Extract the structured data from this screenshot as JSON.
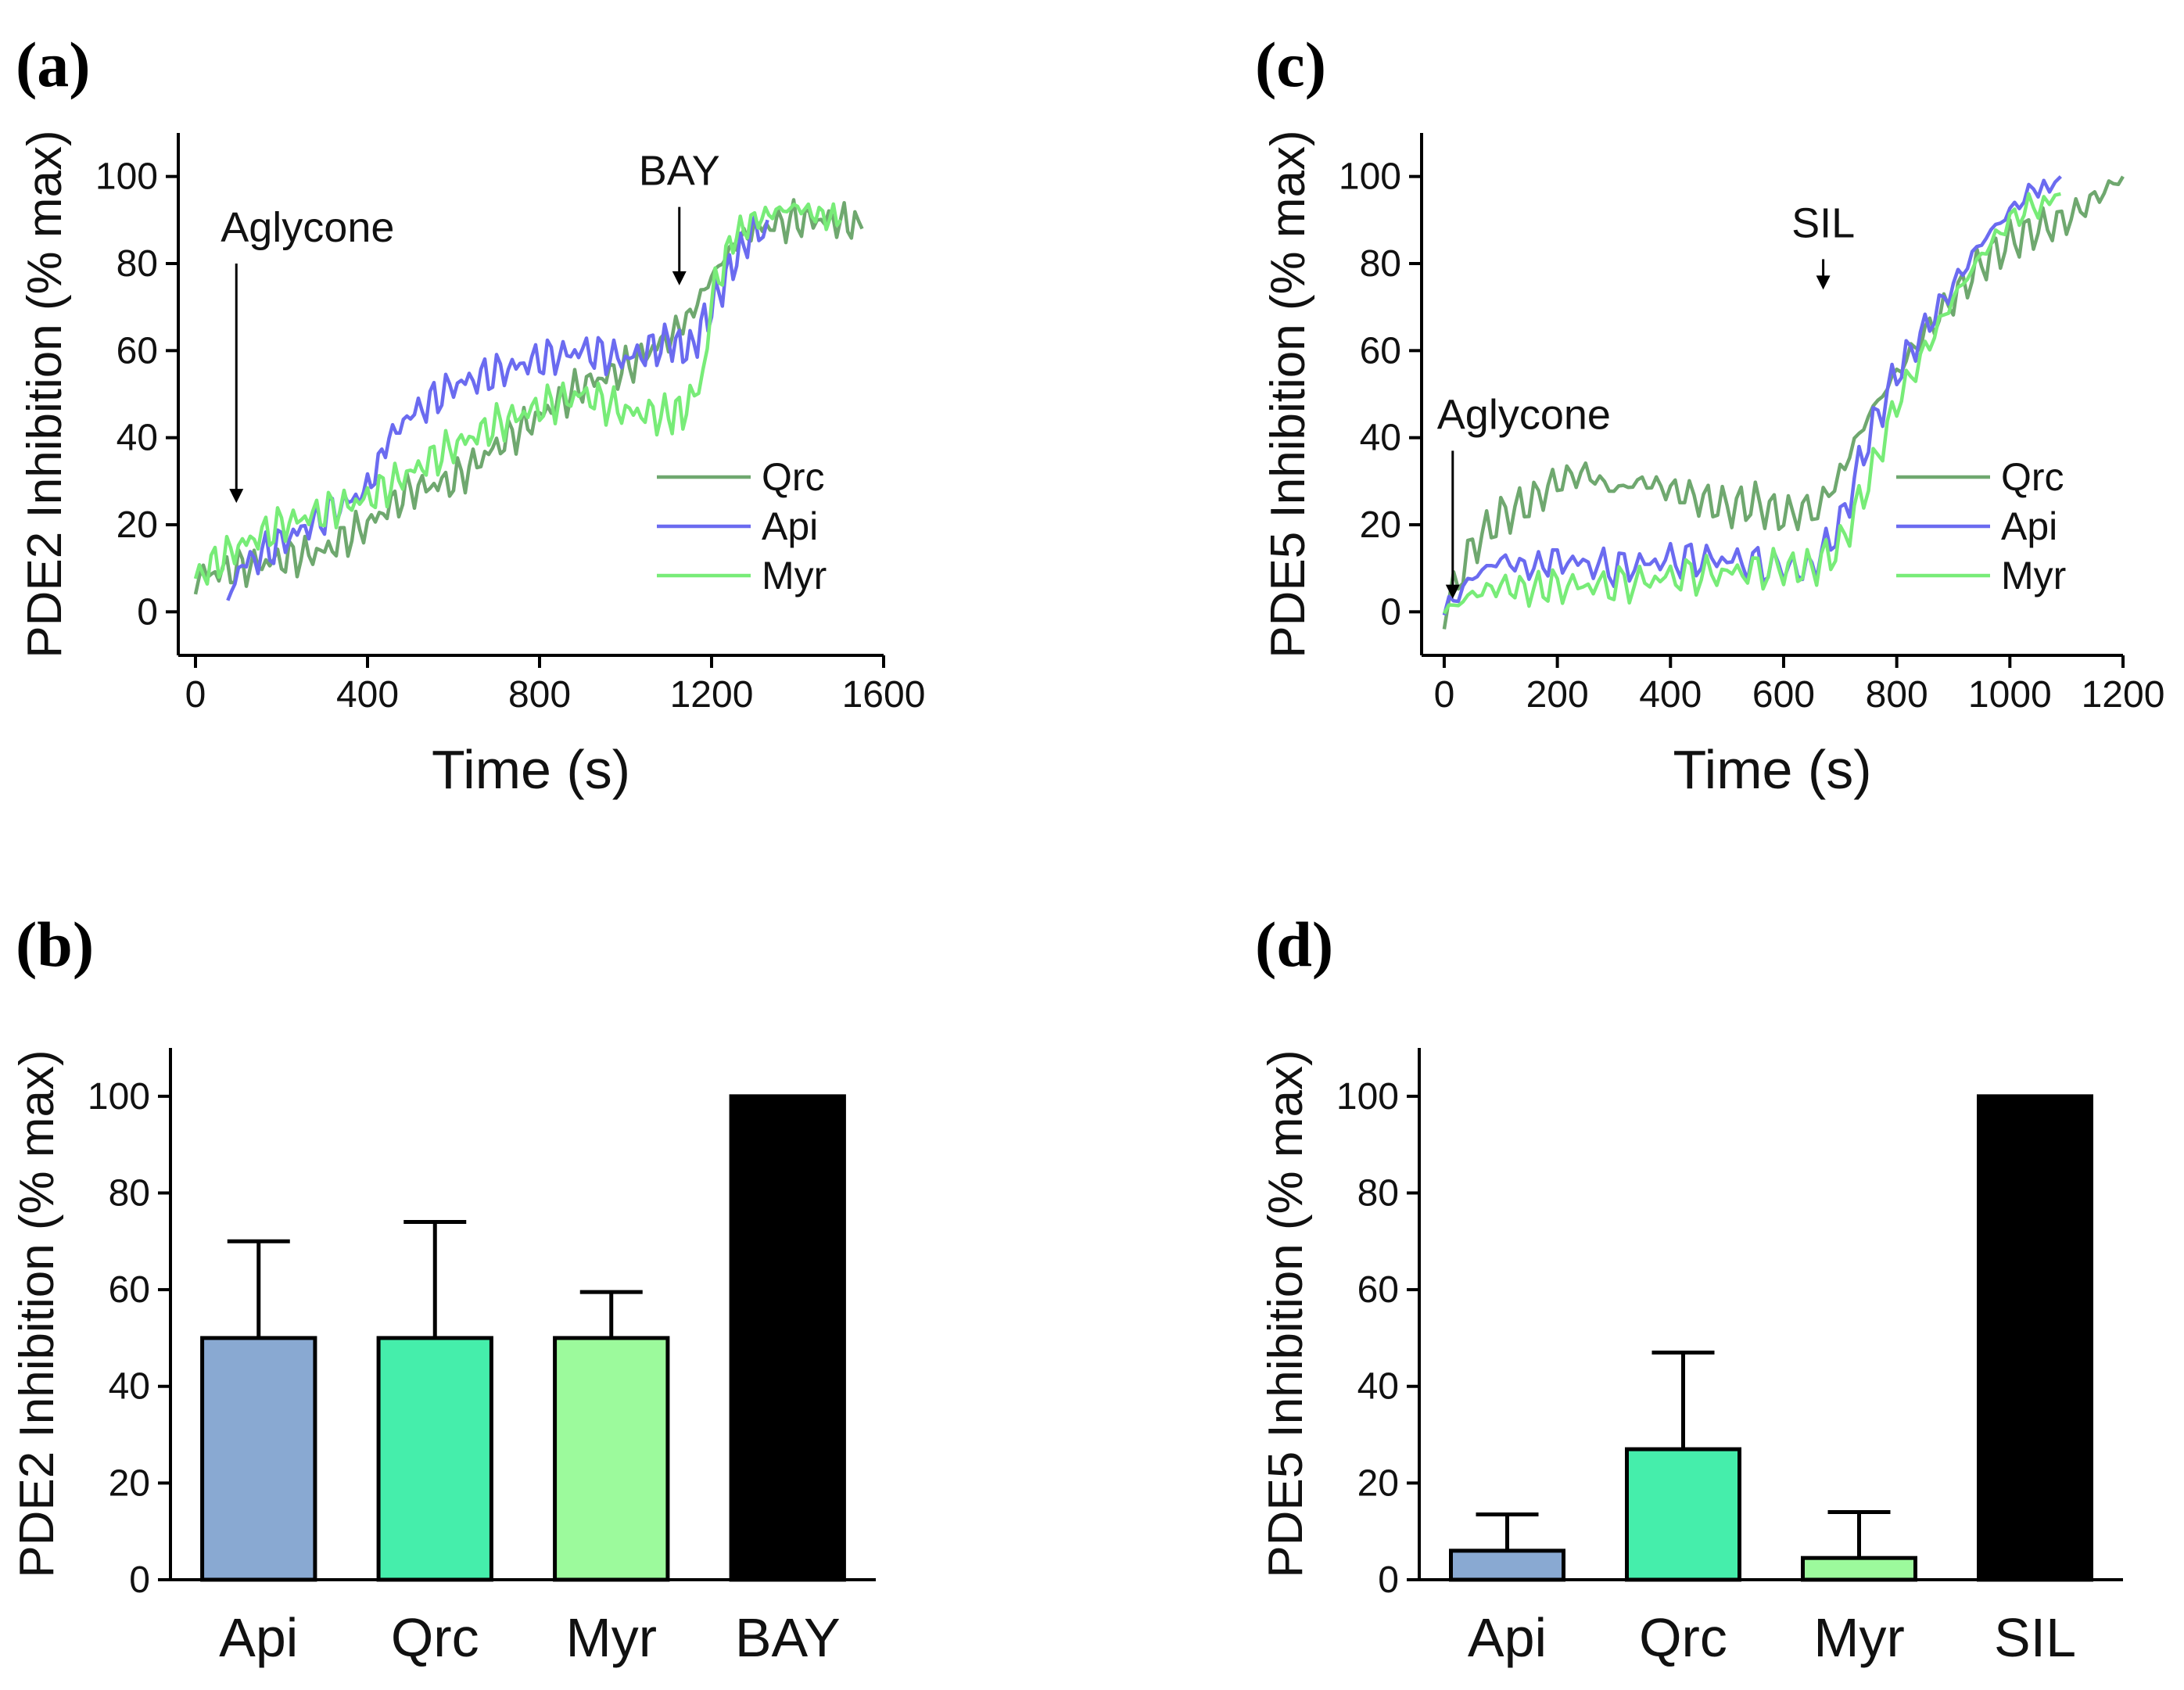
{
  "figure": {
    "panels": [
      {
        "id": "a",
        "label": "(a)"
      },
      {
        "id": "b",
        "label": "(b)"
      },
      {
        "id": "c",
        "label": "(c)"
      },
      {
        "id": "d",
        "label": "(d)"
      }
    ]
  },
  "chart_data": [
    {
      "id": "a",
      "type": "line",
      "xlabel": "Time (s)",
      "ylabel": "PDE2 Inhibition (% max)",
      "xlim": [
        -40,
        1600
      ],
      "ylim": [
        -10,
        110
      ],
      "xticks": [
        0,
        400,
        800,
        1200,
        1600
      ],
      "yticks": [
        0,
        20,
        40,
        60,
        80,
        100
      ],
      "annotations": [
        {
          "text": "Aglycone",
          "x": 95,
          "arrow_from": 80,
          "arrow_to": 25
        },
        {
          "text": "BAY",
          "x": 1125,
          "arrow_from": 93,
          "arrow_to": 75
        }
      ],
      "legend": {
        "position": "center-right",
        "entries": [
          "Qrc",
          "Api",
          "Myr"
        ]
      },
      "series": [
        {
          "name": "Qrc",
          "color": "#6fa86f",
          "x": [
            0,
            100,
            200,
            300,
            400,
            500,
            600,
            700,
            800,
            900,
            1000,
            1100,
            1150,
            1200,
            1250,
            1300,
            1400,
            1500,
            1550
          ],
          "y": [
            8,
            10,
            12,
            14,
            20,
            28,
            30,
            38,
            45,
            52,
            56,
            63,
            68,
            77,
            84,
            88,
            90,
            90,
            88
          ]
        },
        {
          "name": "Api",
          "color": "#6b6bf0",
          "x": [
            75,
            100,
            200,
            300,
            400,
            450,
            500,
            600,
            700,
            800,
            900,
            1000,
            1100,
            1150,
            1200,
            1250,
            1300,
            1330
          ],
          "y": [
            2,
            10,
            16,
            22,
            28,
            40,
            45,
            52,
            55,
            58,
            60,
            58,
            62,
            60,
            70,
            80,
            88,
            90
          ]
        },
        {
          "name": "Myr",
          "color": "#78ec78",
          "x": [
            0,
            100,
            200,
            300,
            400,
            500,
            600,
            700,
            800,
            900,
            1000,
            1100,
            1150,
            1180,
            1200,
            1250,
            1300,
            1350,
            1400,
            1450,
            1500
          ],
          "y": [
            8,
            15,
            20,
            23,
            26,
            32,
            38,
            43,
            47,
            50,
            46,
            45,
            47,
            55,
            72,
            86,
            90,
            92,
            93,
            91,
            90
          ]
        }
      ]
    },
    {
      "id": "b",
      "type": "bar",
      "ylabel": "PDE2 Inhibition (% max)",
      "ylim": [
        0,
        110
      ],
      "yticks": [
        0,
        20,
        40,
        60,
        80,
        100
      ],
      "categories": [
        "Api",
        "Qrc",
        "Myr",
        "BAY"
      ],
      "values": [
        50,
        50,
        50,
        100
      ],
      "errors": [
        20,
        24,
        9.5,
        null
      ],
      "colors": [
        "#89a9d2",
        "#45eeab",
        "#9cfa9c",
        "#000000"
      ]
    },
    {
      "id": "c",
      "type": "line",
      "xlabel": "Time (s)",
      "ylabel": "PDE5 Inhibition (% max)",
      "xlim": [
        -40,
        1200
      ],
      "ylim": [
        -10,
        110
      ],
      "xticks": [
        0,
        200,
        400,
        600,
        800,
        1000,
        1200
      ],
      "yticks": [
        0,
        20,
        40,
        60,
        80,
        100
      ],
      "annotations": [
        {
          "text": "Aglycone",
          "x": 15,
          "arrow_from": 37,
          "arrow_to": 3
        },
        {
          "text": "SIL",
          "x": 670,
          "arrow_from": 81,
          "arrow_to": 74
        }
      ],
      "legend": {
        "position": "center-right",
        "entries": [
          "Qrc",
          "Api",
          "Myr"
        ]
      },
      "series": [
        {
          "name": "Qrc",
          "color": "#6fa86f",
          "x": [
            0,
            50,
            100,
            150,
            200,
            250,
            300,
            350,
            400,
            450,
            500,
            550,
            600,
            650,
            680,
            700,
            750,
            800,
            850,
            900,
            950,
            1000,
            1050,
            1100,
            1150,
            1200
          ],
          "y": [
            0,
            15,
            22,
            25,
            30,
            32,
            28,
            30,
            28,
            26,
            24,
            25,
            22,
            24,
            25,
            32,
            45,
            55,
            64,
            72,
            80,
            85,
            88,
            90,
            95,
            100
          ]
        },
        {
          "name": "Api",
          "color": "#6b6bf0",
          "x": [
            0,
            50,
            100,
            150,
            200,
            300,
            400,
            500,
            600,
            650,
            700,
            750,
            800,
            850,
            900,
            950,
            1000,
            1050,
            1090
          ],
          "y": [
            0,
            8,
            12,
            10,
            12,
            10,
            12,
            12,
            10,
            10,
            20,
            40,
            55,
            65,
            75,
            85,
            92,
            98,
            100
          ]
        },
        {
          "name": "Myr",
          "color": "#78ec78",
          "x": [
            0,
            50,
            100,
            150,
            200,
            300,
            400,
            500,
            600,
            650,
            700,
            750,
            800,
            850,
            900,
            950,
            1000,
            1050,
            1090
          ],
          "y": [
            0,
            4,
            6,
            5,
            6,
            6,
            8,
            9,
            10,
            10,
            15,
            30,
            48,
            60,
            72,
            82,
            90,
            94,
            96
          ]
        }
      ]
    },
    {
      "id": "d",
      "type": "bar",
      "ylabel": "PDE5 Inhibition (% max)",
      "ylim": [
        0,
        110
      ],
      "yticks": [
        0,
        20,
        40,
        60,
        80,
        100
      ],
      "categories": [
        "Api",
        "Qrc",
        "Myr",
        "SIL"
      ],
      "values": [
        6,
        27,
        4.5,
        100
      ],
      "errors": [
        7.5,
        20,
        9.5,
        null
      ],
      "colors": [
        "#89a9d2",
        "#45eeab",
        "#9cfa9c",
        "#000000"
      ]
    }
  ]
}
